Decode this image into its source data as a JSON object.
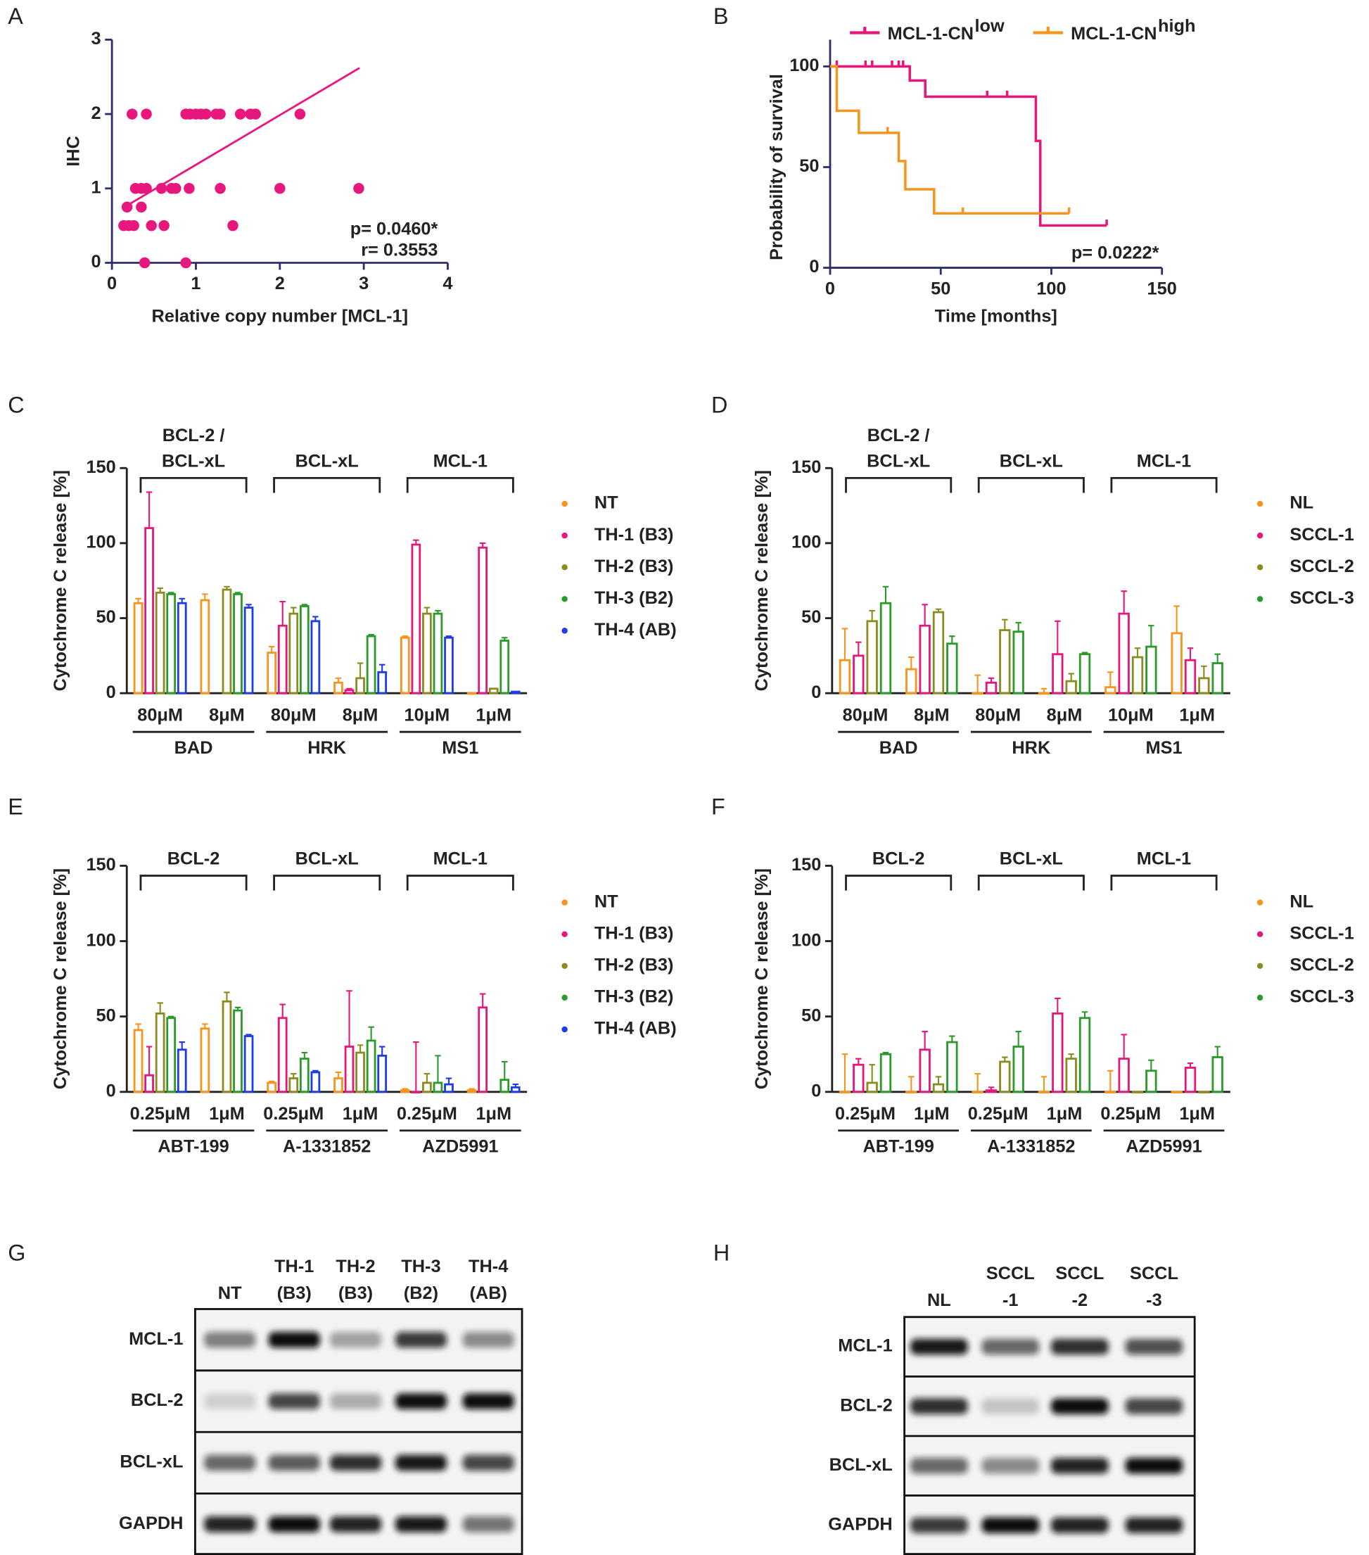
{
  "chart_data": [
    {
      "type": "scatter",
      "panel": "A",
      "xlabel": "Relative copy number [MCL-1]",
      "ylabel": "IHC",
      "color": "#e8177e",
      "x": [
        0.24,
        0.41,
        0.88,
        0.93,
        1.0,
        1.06,
        1.12,
        1.24,
        1.29,
        1.53,
        1.65,
        1.71,
        2.24,
        0.28,
        0.35,
        0.41,
        0.59,
        0.71,
        0.76,
        0.92,
        1.29,
        2.0,
        2.94,
        0.18,
        0.35,
        0.14,
        0.2,
        0.26,
        0.47,
        0.62,
        1.44,
        0.39,
        0.88
      ],
      "values": [
        2,
        2,
        2,
        2,
        2,
        2,
        2,
        2,
        2,
        2,
        2,
        2,
        2,
        1,
        1,
        1,
        1,
        1,
        1,
        1,
        1,
        1,
        1,
        0.75,
        0.75,
        0.5,
        0.5,
        0.5,
        0.5,
        0.5,
        0.5,
        0,
        0
      ],
      "fit": {
        "x": [
          0.15,
          2.95
        ],
        "values": [
          0.75,
          2.62
        ],
        "color": "#e8177e"
      },
      "annotations": [
        "p= 0.0460*",
        "r= 0.3553"
      ],
      "xlim": [
        0,
        4
      ],
      "xticks": [
        0,
        1,
        2,
        3,
        4
      ],
      "ylim": [
        0,
        3
      ],
      "yticks": [
        0,
        1,
        2,
        3
      ]
    },
    {
      "type": "step",
      "panel": "B",
      "xlabel": "Time [months]",
      "ylabel": "Probability of survival",
      "annotation": "p= 0.0222*",
      "xlim": [
        0,
        150
      ],
      "xticks": [
        0,
        50,
        100,
        150
      ],
      "ylim": [
        0,
        100
      ],
      "yticks": [
        0,
        50,
        100
      ],
      "series": [
        {
          "name": "MCL-1-CN",
          "superscript": "low",
          "color": "#e6177a",
          "x": [
            0,
            36,
            43,
            93,
            95,
            125
          ],
          "values": [
            100,
            93,
            85,
            63,
            21,
            21
          ],
          "censored_x": [
            3,
            16,
            19,
            28,
            31,
            33,
            71,
            80,
            125
          ],
          "censored_y": [
            100,
            100,
            100,
            100,
            100,
            100,
            85,
            85,
            21
          ]
        },
        {
          "name": "MCL-1-CN",
          "superscript": "high",
          "color": "#f7941d",
          "x": [
            0,
            3,
            13,
            31,
            34,
            47,
            108
          ],
          "values": [
            100,
            78,
            67,
            53,
            39,
            27,
            27
          ],
          "censored_x": [
            26,
            60,
            108
          ],
          "censored_y": [
            67,
            27,
            27
          ]
        }
      ]
    },
    {
      "type": "bar",
      "panel": "C",
      "ylabel": "Cytochrome C release [%]",
      "ylim": [
        0,
        150
      ],
      "yticks": [
        0,
        50,
        100,
        150
      ],
      "categories": [
        "80μM",
        "8μM",
        "80μM",
        "8μM",
        "10μM",
        "1μM"
      ],
      "groups": [
        "BAD",
        "HRK",
        "MS1"
      ],
      "group_headers": [
        [
          "BCL-2 /",
          "BCL-xL"
        ],
        [
          "BCL-xL"
        ],
        [
          "MCL-1"
        ]
      ],
      "series": [
        {
          "name": "NT",
          "color": "#f7941d",
          "values": [
            60,
            62,
            27,
            7,
            37,
            0
          ],
          "errors": [
            3,
            4,
            4,
            3,
            1,
            0
          ]
        },
        {
          "name": "TH-1 (B3)",
          "color": "#e6177a",
          "values": [
            110,
            null,
            45,
            2,
            99,
            97
          ],
          "errors": [
            24,
            null,
            16,
            1,
            3,
            3
          ]
        },
        {
          "name": "TH-2 (B3)",
          "color": "#8c8c1e",
          "values": [
            67,
            69,
            53,
            10,
            53,
            3
          ],
          "errors": [
            3,
            2,
            4,
            10,
            4,
            0
          ]
        },
        {
          "name": "TH-3 (B2)",
          "color": "#2a9a2a",
          "values": [
            66,
            66,
            58,
            38,
            53,
            35
          ],
          "errors": [
            1,
            1,
            1,
            1,
            2,
            2
          ]
        },
        {
          "name": "TH-4 (AB)",
          "color": "#1f3de6",
          "values": [
            60,
            57,
            48,
            14,
            37,
            1
          ],
          "errors": [
            3,
            2,
            3,
            5,
            1,
            0
          ]
        }
      ]
    },
    {
      "type": "bar",
      "panel": "D",
      "ylabel": "Cytochrome C release [%]",
      "ylim": [
        0,
        150
      ],
      "yticks": [
        0,
        50,
        100,
        150
      ],
      "categories": [
        "80μM",
        "8μM",
        "80μM",
        "8μM",
        "10μM",
        "1μM"
      ],
      "groups": [
        "BAD",
        "HRK",
        "MS1"
      ],
      "group_headers": [
        [
          "BCL-2 /",
          "BCL-xL"
        ],
        [
          "BCL-xL"
        ],
        [
          "MCL-1"
        ]
      ],
      "series": [
        {
          "name": "NL",
          "color": "#f7941d",
          "values": [
            22,
            16,
            0,
            0,
            4,
            40
          ],
          "errors": [
            21,
            8,
            12,
            3,
            10,
            18
          ]
        },
        {
          "name": "SCCL-1",
          "color": "#e6177a",
          "values": [
            25,
            45,
            7,
            26,
            53,
            22
          ],
          "errors": [
            9,
            14,
            3,
            22,
            15,
            8
          ]
        },
        {
          "name": "SCCL-2",
          "color": "#8c8c1e",
          "values": [
            48,
            54,
            42,
            8,
            24,
            10
          ],
          "errors": [
            7,
            2,
            7,
            5,
            6,
            8
          ]
        },
        {
          "name": "SCCL-3",
          "color": "#2a9a2a",
          "values": [
            60,
            33,
            41,
            26,
            31,
            20
          ],
          "errors": [
            11,
            5,
            6,
            1,
            14,
            6
          ]
        }
      ]
    },
    {
      "type": "bar",
      "panel": "E",
      "ylabel": "Cytochrome C release [%]",
      "ylim": [
        0,
        150
      ],
      "yticks": [
        0,
        50,
        100,
        150
      ],
      "categories": [
        "0.25μM",
        "1μM",
        "0.25μM",
        "1μM",
        "0.25μM",
        "1μM"
      ],
      "groups": [
        "ABT-199",
        "A-1331852",
        "AZD5991"
      ],
      "group_headers": [
        [
          "BCL-2"
        ],
        [
          "BCL-xL"
        ],
        [
          "MCL-1"
        ]
      ],
      "series": [
        {
          "name": "NT",
          "color": "#f7941d",
          "values": [
            41,
            42,
            6,
            9,
            1,
            1
          ],
          "errors": [
            4,
            3,
            1,
            4,
            1,
            1
          ]
        },
        {
          "name": "TH-1 (B3)",
          "color": "#e6177a",
          "values": [
            11,
            null,
            49,
            30,
            0,
            56
          ],
          "errors": [
            19,
            null,
            9,
            37,
            33,
            9
          ]
        },
        {
          "name": "TH-2 (B3)",
          "color": "#8c8c1e",
          "values": [
            52,
            60,
            9,
            26,
            6,
            null
          ],
          "errors": [
            7,
            6,
            3,
            5,
            6,
            null
          ]
        },
        {
          "name": "TH-3 (B2)",
          "color": "#2a9a2a",
          "values": [
            49,
            54,
            22,
            34,
            6,
            8
          ],
          "errors": [
            1,
            2,
            4,
            9,
            18,
            12
          ]
        },
        {
          "name": "TH-4 (AB)",
          "color": "#1f3de6",
          "values": [
            28,
            37,
            13,
            24,
            5,
            3
          ],
          "errors": [
            5,
            1,
            1,
            6,
            4,
            2
          ]
        }
      ]
    },
    {
      "type": "bar",
      "panel": "F",
      "ylabel": "Cytochrome C release [%]",
      "ylim": [
        0,
        150
      ],
      "yticks": [
        0,
        50,
        100,
        150
      ],
      "categories": [
        "0.25μM",
        "1μM",
        "0.25μM",
        "1μM",
        "0.25μM",
        "1μM"
      ],
      "groups": [
        "ABT-199",
        "A-1331852",
        "AZD5991"
      ],
      "group_headers": [
        [
          "BCL-2"
        ],
        [
          "BCL-xL"
        ],
        [
          "MCL-1"
        ]
      ],
      "series": [
        {
          "name": "NL",
          "color": "#f7941d",
          "values": [
            0,
            0,
            0,
            0,
            0,
            0
          ],
          "errors": [
            25,
            10,
            12,
            10,
            14,
            0
          ]
        },
        {
          "name": "SCCL-1",
          "color": "#e6177a",
          "values": [
            18,
            28,
            1,
            52,
            22,
            16
          ],
          "errors": [
            4,
            12,
            2,
            10,
            16,
            3
          ]
        },
        {
          "name": "SCCL-2",
          "color": "#8c8c1e",
          "values": [
            6,
            5,
            20,
            22,
            0,
            0
          ],
          "errors": [
            12,
            5,
            3,
            3,
            0,
            0
          ]
        },
        {
          "name": "SCCL-3",
          "color": "#2a9a2a",
          "values": [
            25,
            33,
            30,
            49,
            14,
            23
          ],
          "errors": [
            1,
            4,
            10,
            4,
            7,
            7
          ]
        }
      ]
    }
  ],
  "blots": [
    {
      "panel": "G",
      "columns": [
        [
          "NT"
        ],
        [
          "TH-1",
          "(B3)"
        ],
        [
          "TH-2",
          "(B3)"
        ],
        [
          "TH-3",
          "(B2)"
        ],
        [
          "TH-4",
          "(AB)"
        ]
      ],
      "rows": [
        "MCL-1",
        "BCL-2",
        "BCL-xL",
        "GAPDH"
      ],
      "intensity": [
        [
          0.5,
          1,
          0.35,
          0.8,
          0.45
        ],
        [
          0.15,
          0.75,
          0.3,
          1,
          1
        ],
        [
          0.6,
          0.65,
          0.85,
          0.95,
          0.75
        ],
        [
          0.9,
          1,
          0.9,
          0.95,
          0.55
        ]
      ]
    },
    {
      "panel": "H",
      "columns": [
        [
          "NL"
        ],
        [
          "SCCL",
          "-1"
        ],
        [
          "SCCL",
          "-2"
        ],
        [
          "SCCL",
          "-3"
        ]
      ],
      "rows": [
        "MCL-1",
        "BCL-2",
        "BCL-xL",
        "GAPDH"
      ],
      "intensity": [
        [
          0.95,
          0.6,
          0.85,
          0.7
        ],
        [
          0.85,
          0.2,
          1,
          0.75
        ],
        [
          0.6,
          0.45,
          0.9,
          1
        ],
        [
          0.8,
          1,
          0.9,
          0.9
        ]
      ]
    }
  ]
}
